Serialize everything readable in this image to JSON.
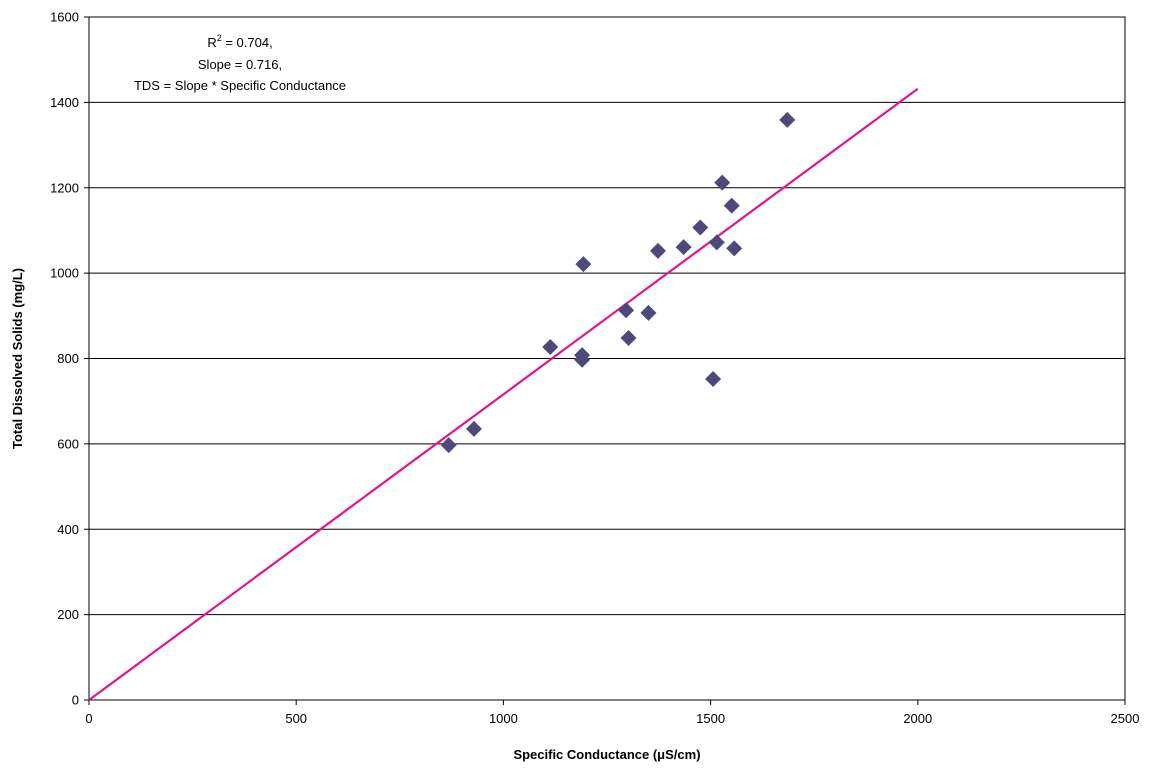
{
  "chart_data": {
    "type": "scatter",
    "title": "",
    "xlabel": "Specific Conductance (μS/cm)",
    "ylabel": "Total Dissolved Solids (mg/L)",
    "xlim": [
      0,
      2500
    ],
    "ylim": [
      0,
      1600
    ],
    "x_ticks": [
      0,
      500,
      1000,
      1500,
      2000,
      2500
    ],
    "y_ticks": [
      0,
      200,
      400,
      600,
      800,
      1000,
      1200,
      1400,
      1600
    ],
    "grid": "horizontal",
    "legend": "none",
    "annotation": {
      "r2_prefix": "R",
      "r2_exponent": "2",
      "r2_value": " = 0.704,",
      "slope_line": "Slope = 0.716,",
      "formula_line": "TDS = Slope * Specific Conductance"
    },
    "series": [
      {
        "marker": "diamond",
        "color": "#4d4a7a",
        "points": [
          {
            "x": 868,
            "y": 597
          },
          {
            "x": 929,
            "y": 635
          },
          {
            "x": 1113,
            "y": 827
          },
          {
            "x": 1190,
            "y": 808
          },
          {
            "x": 1190,
            "y": 797
          },
          {
            "x": 1193,
            "y": 1021
          },
          {
            "x": 1296,
            "y": 913
          },
          {
            "x": 1302,
            "y": 848
          },
          {
            "x": 1350,
            "y": 907
          },
          {
            "x": 1373,
            "y": 1052
          },
          {
            "x": 1435,
            "y": 1061
          },
          {
            "x": 1475,
            "y": 1107
          },
          {
            "x": 1506,
            "y": 752
          },
          {
            "x": 1515,
            "y": 1072
          },
          {
            "x": 1528,
            "y": 1212
          },
          {
            "x": 1551,
            "y": 1158
          },
          {
            "x": 1557,
            "y": 1058
          },
          {
            "x": 1685,
            "y": 1359
          }
        ]
      }
    ],
    "fit_line": {
      "type": "line",
      "color": "#e0178a",
      "slope": 0.716,
      "intercept": 0,
      "x_range": [
        0,
        2000
      ]
    }
  }
}
